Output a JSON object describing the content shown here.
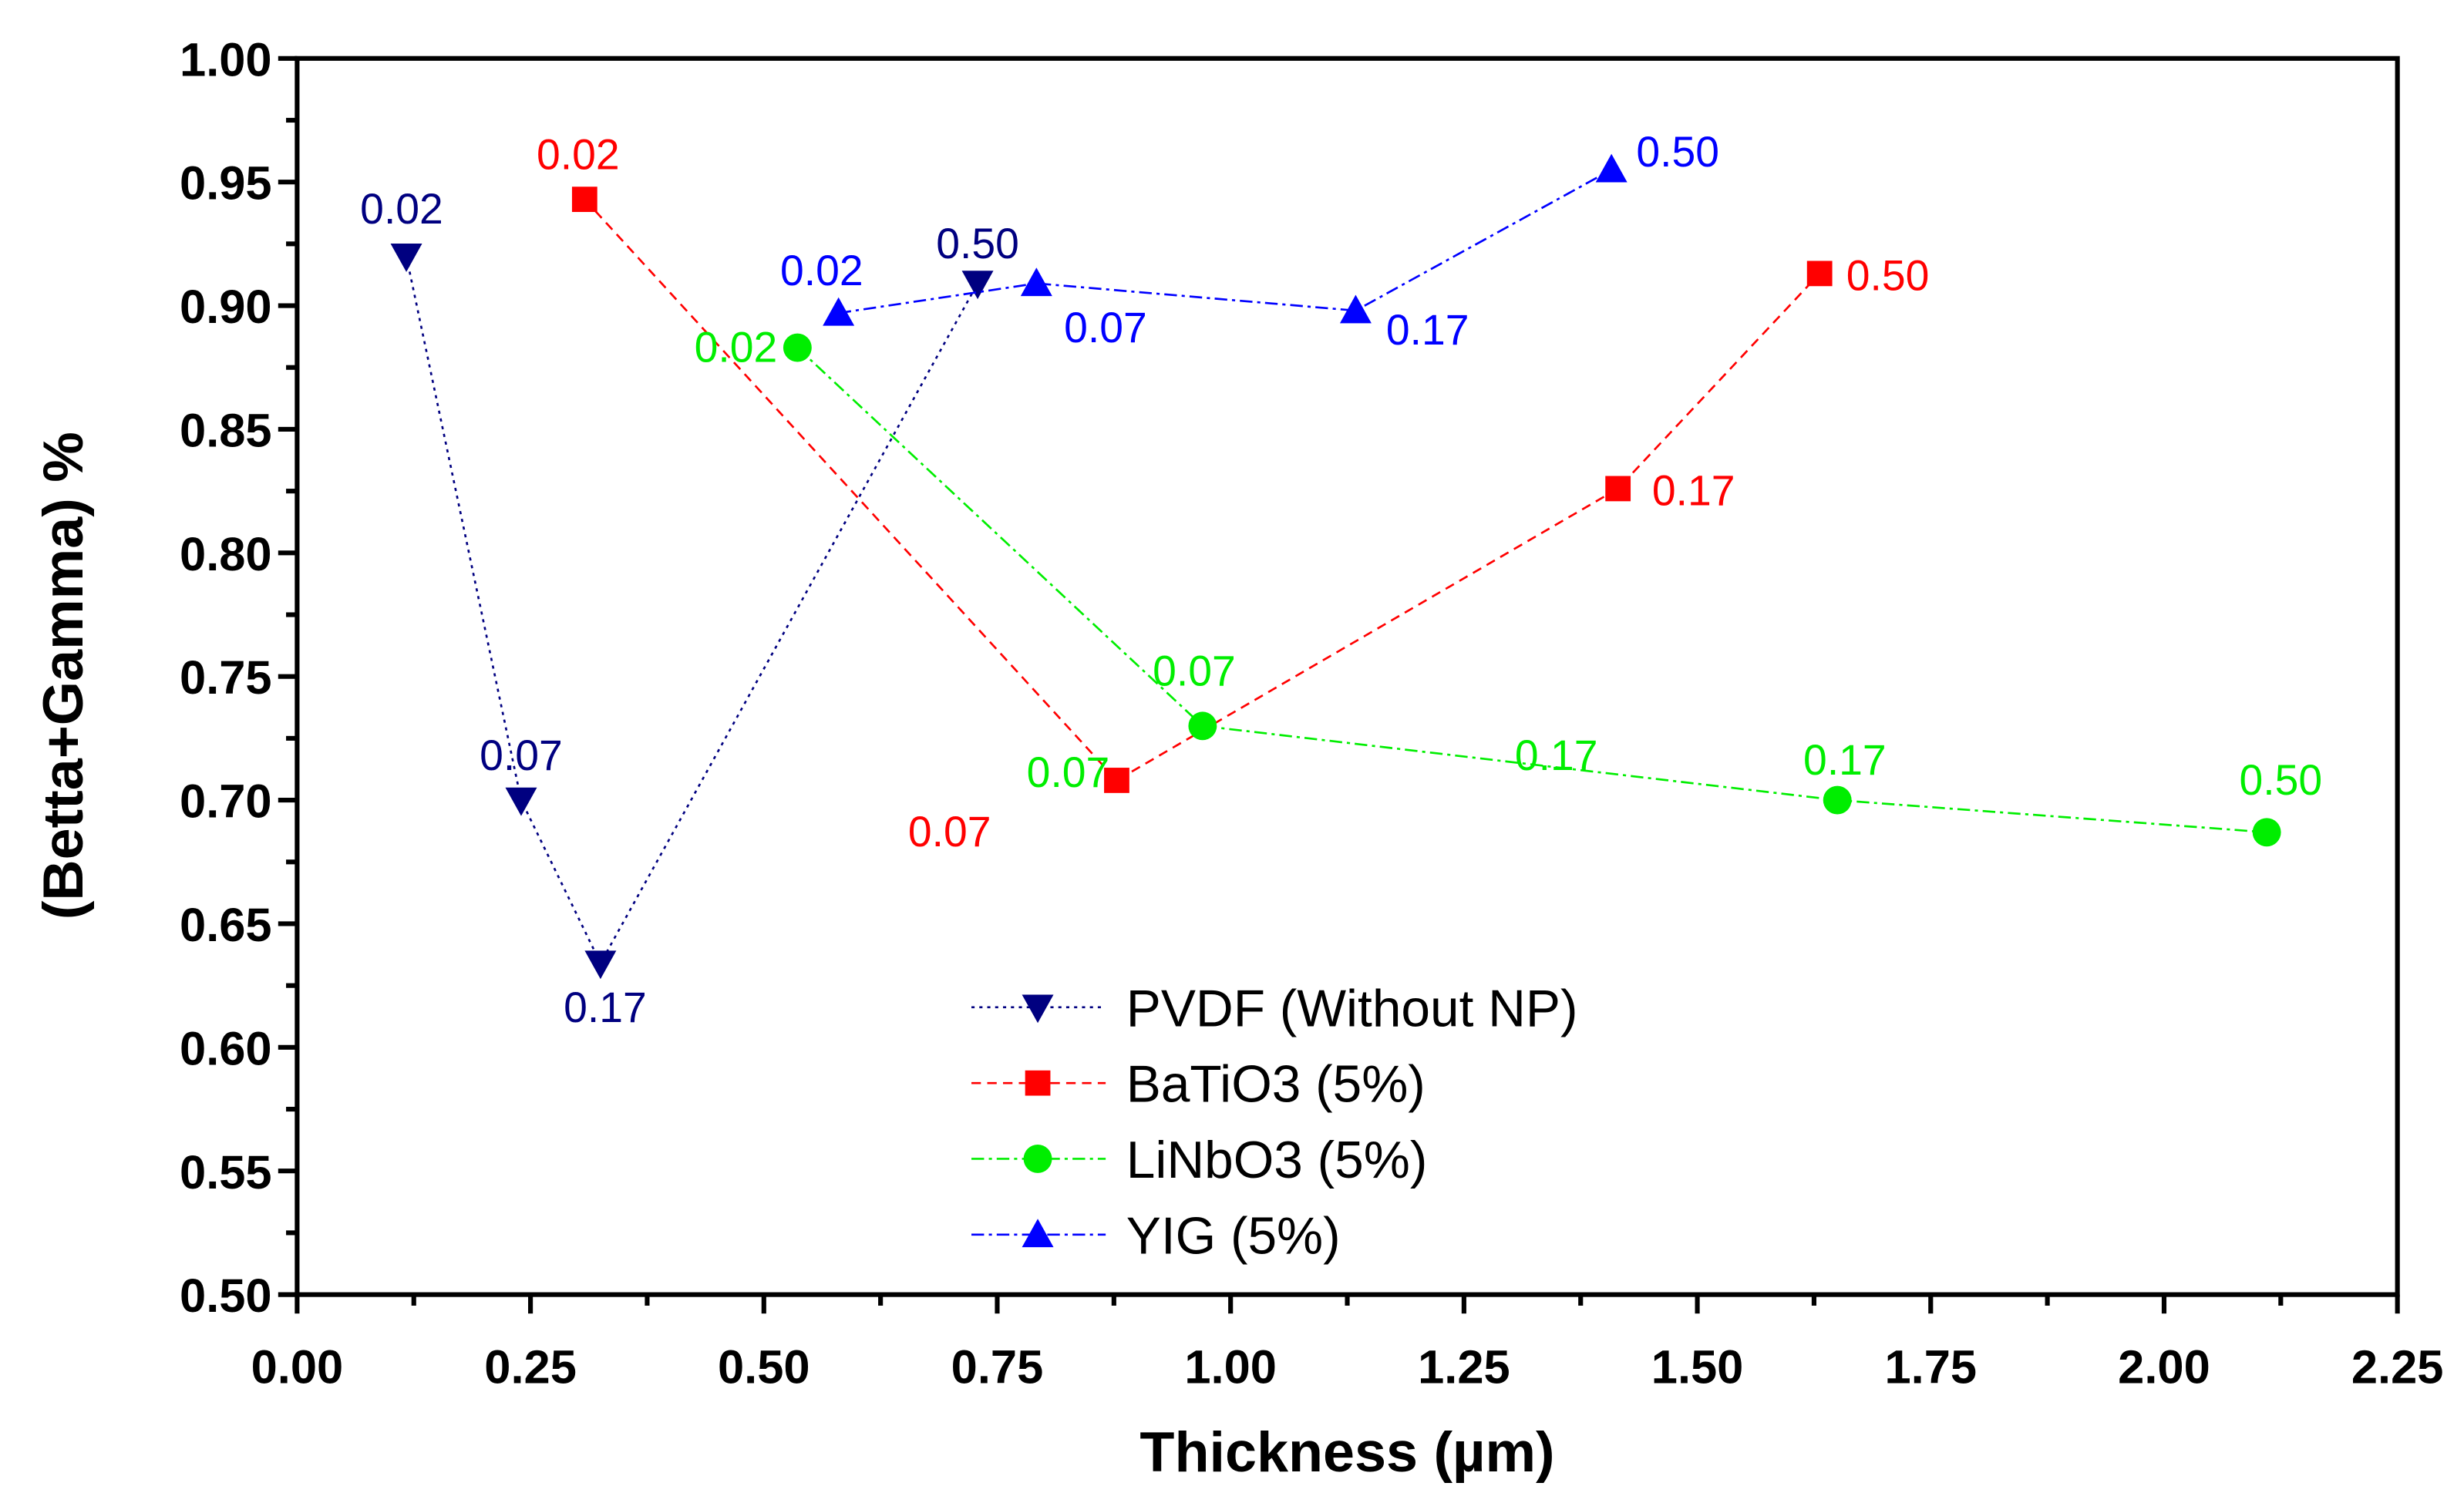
{
  "chart_data": {
    "type": "line",
    "title": "",
    "xlabel": "Thickness (µm)",
    "ylabel": "(Betta+Gamma) %",
    "xlim": [
      0,
      2.25
    ],
    "ylim": [
      0.5,
      1.0
    ],
    "xticks": [
      "0.00",
      "0.25",
      "0.50",
      "0.75",
      "1.00",
      "1.25",
      "1.50",
      "1.75",
      "2.00",
      "2.25"
    ],
    "yticks": [
      "0.50",
      "0.55",
      "0.60",
      "0.65",
      "0.70",
      "0.75",
      "0.80",
      "0.85",
      "0.90",
      "0.95",
      "1.00"
    ],
    "grid": false,
    "legend_placement": "bottom-center",
    "series": [
      {
        "name": "PVDF (Without NP)",
        "color": "#000080",
        "marker": "triangle-down",
        "line": "dotted",
        "x": [
          0.117,
          0.24,
          0.325,
          0.729
        ],
        "y": [
          0.92,
          0.7,
          0.634,
          0.909
        ]
      },
      {
        "name": "BaTiO3 (5%)",
        "color": "#ff0000",
        "marker": "square",
        "line": "dashed",
        "x": [
          0.308,
          0.878,
          1.415,
          1.631
        ],
        "y": [
          0.943,
          0.708,
          0.826,
          0.913
        ]
      },
      {
        "name": "LiNbO3 (5%)",
        "color": "#00ee00",
        "marker": "circle",
        "line": "dash-dot",
        "x": [
          0.536,
          0.97,
          1.65,
          2.11
        ],
        "y": [
          0.883,
          0.73,
          0.7,
          0.687
        ]
      },
      {
        "name": "YIG (5%)",
        "color": "#0000ff",
        "marker": "triangle-up",
        "line": "dash-dot",
        "x": [
          0.58,
          0.792,
          1.134,
          1.408
        ],
        "y": [
          0.897,
          0.909,
          0.898,
          0.955
        ]
      }
    ],
    "annotations": [
      {
        "text": "0.02",
        "series": 0,
        "x": 0.112,
        "y": 0.939
      },
      {
        "text": "0.07",
        "series": 0,
        "x": 0.24,
        "y": 0.718
      },
      {
        "text": "0.17",
        "series": 0,
        "x": 0.33,
        "y": 0.616
      },
      {
        "text": "0.50",
        "series": 0,
        "x": 0.729,
        "y": 0.925
      },
      {
        "text": "0.02",
        "series": 1,
        "x": 0.301,
        "y": 0.961
      },
      {
        "text": "0.07",
        "series": 1,
        "x": 0.699,
        "y": 0.687
      },
      {
        "text": "0.17",
        "series": 1,
        "x": 1.496,
        "y": 0.825
      },
      {
        "text": "0.50",
        "series": 1,
        "x": 1.704,
        "y": 0.912
      },
      {
        "text": "0.02",
        "series": 2,
        "x": 0.47,
        "y": 0.883
      },
      {
        "text": "0.07",
        "series": 2,
        "x": 0.826,
        "y": 0.711
      },
      {
        "text": "0.07",
        "series": 2,
        "x": 0.961,
        "y": 0.752
      },
      {
        "text": "0.17",
        "series": 2,
        "x": 1.349,
        "y": 0.718
      },
      {
        "text": "0.17",
        "series": 2,
        "x": 1.658,
        "y": 0.716
      },
      {
        "text": "0.50",
        "series": 2,
        "x": 2.125,
        "y": 0.708
      },
      {
        "text": "0.02",
        "series": 3,
        "x": 0.562,
        "y": 0.914
      },
      {
        "text": "0.07",
        "series": 3,
        "x": 0.866,
        "y": 0.891
      },
      {
        "text": "0.17",
        "series": 3,
        "x": 1.211,
        "y": 0.89
      },
      {
        "text": "0.50",
        "series": 3,
        "x": 1.479,
        "y": 0.962
      }
    ]
  }
}
